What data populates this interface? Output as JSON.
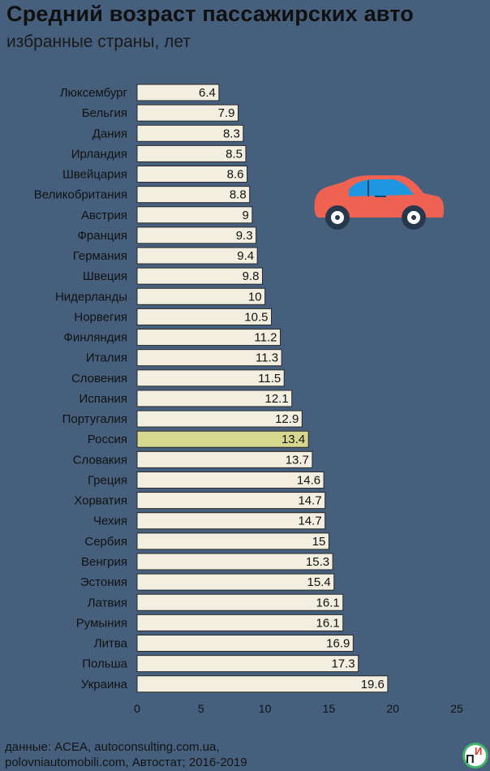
{
  "chart_data": {
    "type": "bar",
    "orientation": "horizontal",
    "title": "Средний возраст пассажирских авто",
    "subtitle": "избранные страны, лет",
    "categories": [
      "Люксембург",
      "Бельгия",
      "Дания",
      "Ирландия",
      "Швейцария",
      "Великобритания",
      "Австрия",
      "Франция",
      "Германия",
      "Швеция",
      "Нидерланды",
      "Норвегия",
      "Финляндия",
      "Италия",
      "Словения",
      "Испания",
      "Португалия",
      "Россия",
      "Словакия",
      "Греция",
      "Хорватия",
      "Чехия",
      "Сербия",
      "Венгрия",
      "Эстония",
      "Латвия",
      "Румыния",
      "Литва",
      "Польша",
      "Украина"
    ],
    "values": [
      6.4,
      7.9,
      8.3,
      8.5,
      8.6,
      8.8,
      9,
      9.3,
      9.4,
      9.8,
      10,
      10.5,
      11.2,
      11.3,
      11.5,
      12.1,
      12.9,
      13.4,
      13.7,
      14.6,
      14.7,
      14.7,
      15,
      15.3,
      15.4,
      16.1,
      16.1,
      16.9,
      17.3,
      19.6
    ],
    "value_labels": [
      "6.4",
      "7.9",
      "8.3",
      "8.5",
      "8.6",
      "8.8",
      "9",
      "9.3",
      "9.4",
      "9.8",
      "10",
      "10.5",
      "11.2",
      "11.3",
      "11.5",
      "12.1",
      "12.9",
      "13.4",
      "13.7",
      "14.6",
      "14.7",
      "14.7",
      "15",
      "15.3",
      "15.4",
      "16.1",
      "16.1",
      "16.9",
      "17.3",
      "19.6"
    ],
    "highlight": "Россия",
    "xlim": [
      0,
      25
    ],
    "xticks": [
      "0",
      "5",
      "10",
      "15",
      "20",
      "25"
    ],
    "xlabel": "",
    "ylabel": "",
    "grid": false
  },
  "colors": {
    "background": "#455f7d",
    "bar": "#f2efe0",
    "bar_highlight": "#d7d88f",
    "bar_border": "#2a2a2a",
    "text": "#121212",
    "car_body": "#ef6150",
    "car_window": "#1f97e0"
  },
  "source": {
    "line1": "данные: ACEA, autoconsulting.com.ua,",
    "line2": "polovniautomobili.com, Автостат; 2016-2019"
  },
  "logo": {
    "letter1": "П",
    "letter2": "И"
  },
  "icons": {
    "car": "car-icon",
    "logo": "logo-icon"
  }
}
